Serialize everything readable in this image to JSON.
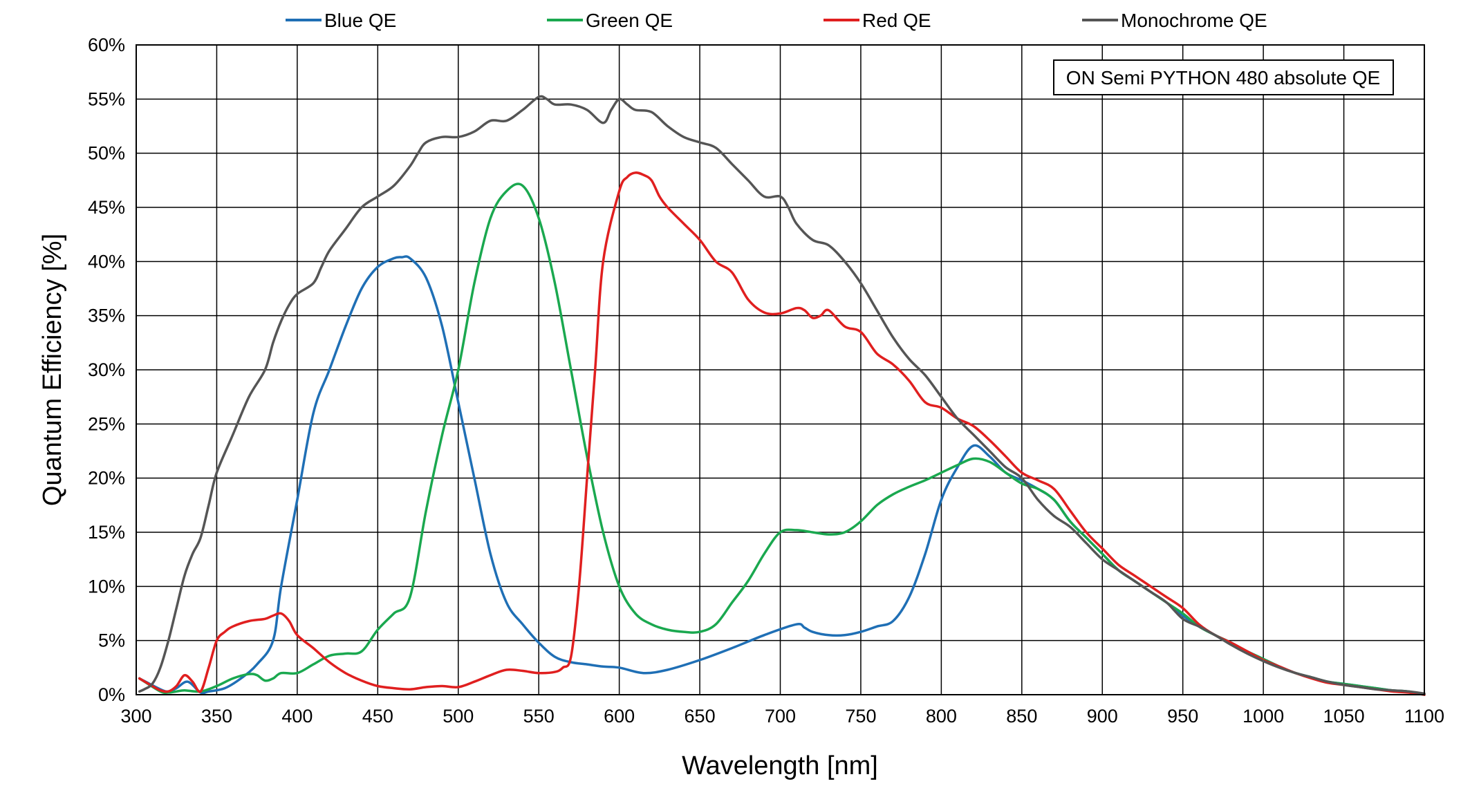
{
  "chart_data": {
    "type": "line",
    "title": "",
    "annotation": "ON Semi PYTHON 480 absolute QE",
    "xlabel": "Wavelength [nm]",
    "ylabel": "Quantum Efficiency [%]",
    "xlim": [
      300,
      1100
    ],
    "ylim": [
      0,
      60
    ],
    "xticks": [
      300,
      350,
      400,
      450,
      500,
      550,
      600,
      650,
      700,
      750,
      800,
      850,
      900,
      950,
      1000,
      1050,
      1100
    ],
    "yticks": [
      0,
      5,
      10,
      15,
      20,
      25,
      30,
      35,
      40,
      45,
      50,
      55,
      60
    ],
    "ytick_labels": [
      "0%",
      "5%",
      "10%",
      "15%",
      "20%",
      "25%",
      "30%",
      "35%",
      "40%",
      "45%",
      "50%",
      "55%",
      "60%"
    ],
    "grid": true,
    "legend_position": "top",
    "series": [
      {
        "name": "Blue QE",
        "color": "#1f6fb5",
        "x": [
          302,
          315,
          320,
          325,
          332,
          340,
          345,
          355,
          365,
          375,
          385,
          390,
          400,
          410,
          420,
          430,
          440,
          450,
          460,
          465,
          470,
          480,
          490,
          500,
          510,
          520,
          530,
          540,
          550,
          560,
          570,
          580,
          590,
          600,
          615,
          630,
          650,
          670,
          690,
          710,
          715,
          720,
          730,
          740,
          750,
          760,
          770,
          780,
          790,
          800,
          810,
          820,
          830,
          840,
          850,
          860,
          870,
          880,
          890,
          900,
          910,
          920,
          930,
          940,
          950,
          960,
          970,
          980,
          990,
          1000,
          1010,
          1020,
          1030,
          1040,
          1050,
          1060,
          1070,
          1080,
          1090,
          1100
        ],
        "y": [
          1.5,
          0.5,
          0.3,
          0.6,
          1.2,
          0.2,
          0.3,
          0.6,
          1.5,
          2.8,
          5.0,
          10.0,
          18.0,
          26.0,
          30.0,
          34.0,
          37.5,
          39.5,
          40.3,
          40.4,
          40.3,
          38.5,
          34.0,
          27.0,
          20.0,
          13.0,
          8.5,
          6.5,
          4.8,
          3.5,
          3.0,
          2.8,
          2.6,
          2.5,
          2.0,
          2.3,
          3.2,
          4.3,
          5.5,
          6.5,
          6.2,
          5.8,
          5.5,
          5.5,
          5.8,
          6.3,
          6.8,
          9.0,
          13.0,
          18.0,
          21.0,
          23.0,
          22.0,
          20.5,
          19.8,
          19.0,
          18.0,
          16.0,
          14.5,
          13.0,
          11.5,
          10.5,
          9.5,
          8.5,
          7.3,
          6.3,
          5.5,
          4.8,
          4.0,
          3.3,
          2.6,
          2.0,
          1.6,
          1.2,
          1.0,
          0.8,
          0.6,
          0.4,
          0.3,
          0.0
        ]
      },
      {
        "name": "Green QE",
        "color": "#1aa84f",
        "x": [
          302,
          315,
          320,
          325,
          330,
          340,
          350,
          360,
          370,
          375,
          380,
          385,
          390,
          400,
          410,
          420,
          430,
          440,
          450,
          460,
          470,
          480,
          490,
          500,
          510,
          520,
          530,
          540,
          550,
          560,
          570,
          580,
          590,
          600,
          610,
          620,
          630,
          640,
          650,
          660,
          670,
          680,
          690,
          700,
          710,
          720,
          730,
          740,
          750,
          760,
          770,
          780,
          790,
          800,
          810,
          820,
          830,
          840,
          850,
          860,
          870,
          880,
          890,
          900,
          910,
          920,
          930,
          940,
          950,
          960,
          970,
          980,
          990,
          1000,
          1010,
          1020,
          1030,
          1040,
          1050,
          1060,
          1070,
          1080,
          1090,
          1100
        ],
        "y": [
          1.5,
          0.3,
          0.2,
          0.3,
          0.4,
          0.3,
          0.8,
          1.5,
          1.9,
          1.8,
          1.3,
          1.5,
          2.0,
          2.0,
          2.8,
          3.6,
          3.8,
          4.0,
          6.0,
          7.5,
          9.0,
          17.0,
          24.0,
          30.0,
          38.0,
          44.0,
          46.5,
          47.0,
          44.0,
          38.0,
          30.0,
          22.0,
          15.0,
          10.0,
          7.5,
          6.5,
          6.0,
          5.8,
          5.8,
          6.5,
          8.5,
          10.5,
          13.0,
          15.0,
          15.2,
          15.0,
          14.8,
          15.0,
          16.0,
          17.5,
          18.5,
          19.2,
          19.8,
          20.5,
          21.2,
          21.8,
          21.5,
          20.5,
          19.5,
          19.0,
          18.0,
          16.0,
          14.5,
          13.0,
          11.5,
          10.5,
          9.5,
          8.5,
          7.5,
          6.3,
          5.5,
          4.8,
          4.0,
          3.3,
          2.6,
          2.0,
          1.6,
          1.2,
          1.0,
          0.8,
          0.6,
          0.4,
          0.3,
          0.0
        ]
      },
      {
        "name": "Red QE",
        "color": "#e01f1f",
        "x": [
          302,
          310,
          315,
          320,
          325,
          330,
          335,
          340,
          345,
          350,
          355,
          360,
          370,
          380,
          385,
          390,
          395,
          400,
          410,
          420,
          430,
          440,
          450,
          460,
          470,
          480,
          490,
          500,
          510,
          520,
          530,
          540,
          550,
          560,
          565,
          570,
          575,
          580,
          585,
          590,
          600,
          605,
          610,
          615,
          620,
          625,
          630,
          640,
          650,
          660,
          670,
          680,
          690,
          700,
          710,
          715,
          720,
          725,
          730,
          740,
          750,
          760,
          770,
          780,
          790,
          800,
          810,
          820,
          830,
          840,
          850,
          860,
          870,
          880,
          890,
          900,
          910,
          920,
          930,
          940,
          950,
          960,
          970,
          980,
          990,
          1000,
          1010,
          1020,
          1030,
          1040,
          1050,
          1060,
          1070,
          1080,
          1090,
          1100
        ],
        "y": [
          1.5,
          0.8,
          0.4,
          0.3,
          0.8,
          1.8,
          1.2,
          0.3,
          2.5,
          5.0,
          5.8,
          6.3,
          6.8,
          7.0,
          7.3,
          7.5,
          6.8,
          5.5,
          4.3,
          3.0,
          2.0,
          1.3,
          0.8,
          0.6,
          0.5,
          0.7,
          0.8,
          0.7,
          1.2,
          1.8,
          2.3,
          2.2,
          2.0,
          2.1,
          2.5,
          3.5,
          10.0,
          20.0,
          30.0,
          40.0,
          46.5,
          47.8,
          48.2,
          48.0,
          47.5,
          46.0,
          45.0,
          43.5,
          42.0,
          40.0,
          39.0,
          36.5,
          35.3,
          35.2,
          35.7,
          35.5,
          34.8,
          35.0,
          35.5,
          34.0,
          33.5,
          31.5,
          30.5,
          29.0,
          27.0,
          26.5,
          25.5,
          24.8,
          23.5,
          22.0,
          20.5,
          19.8,
          19.0,
          17.0,
          15.0,
          13.5,
          12.0,
          11.0,
          10.0,
          9.0,
          8.0,
          6.5,
          5.5,
          4.8,
          4.0,
          3.2,
          2.6,
          2.0,
          1.5,
          1.1,
          0.9,
          0.7,
          0.5,
          0.3,
          0.2,
          0.0
        ]
      },
      {
        "name": "Monochrome QE",
        "color": "#555555",
        "x": [
          302,
          305,
          310,
          315,
          320,
          325,
          330,
          335,
          340,
          345,
          350,
          360,
          370,
          380,
          385,
          390,
          395,
          400,
          410,
          415,
          420,
          430,
          440,
          450,
          460,
          470,
          475,
          480,
          490,
          500,
          510,
          520,
          530,
          540,
          550,
          555,
          560,
          570,
          580,
          590,
          595,
          600,
          605,
          610,
          620,
          630,
          640,
          650,
          660,
          670,
          680,
          690,
          700,
          705,
          710,
          720,
          730,
          740,
          750,
          760,
          770,
          780,
          790,
          800,
          810,
          820,
          830,
          840,
          850,
          860,
          870,
          880,
          890,
          900,
          910,
          920,
          930,
          940,
          950,
          960,
          970,
          980,
          990,
          1000,
          1010,
          1020,
          1030,
          1040,
          1050,
          1060,
          1070,
          1080,
          1090,
          1100
        ],
        "y": [
          0.3,
          0.5,
          1.0,
          2.5,
          5.0,
          8.0,
          11.0,
          13.0,
          14.5,
          17.5,
          20.5,
          24.0,
          27.5,
          30.0,
          32.5,
          34.5,
          36.0,
          37.0,
          38.0,
          39.5,
          41.0,
          43.0,
          45.0,
          46.0,
          47.0,
          48.8,
          50.0,
          51.0,
          51.5,
          51.5,
          52.0,
          53.0,
          53.0,
          54.0,
          55.2,
          55.0,
          54.5,
          54.5,
          54.0,
          52.8,
          54.0,
          55.0,
          54.5,
          54.0,
          53.8,
          52.5,
          51.5,
          51.0,
          50.5,
          49.0,
          47.5,
          46.0,
          46.0,
          45.0,
          43.5,
          42.0,
          41.5,
          40.0,
          38.0,
          35.5,
          33.0,
          31.0,
          29.5,
          27.5,
          25.5,
          24.0,
          22.5,
          21.0,
          20.0,
          18.0,
          16.5,
          15.5,
          14.0,
          12.5,
          11.5,
          10.5,
          9.5,
          8.5,
          7.0,
          6.3,
          5.5,
          4.6,
          3.8,
          3.1,
          2.5,
          2.0,
          1.6,
          1.2,
          0.9,
          0.7,
          0.5,
          0.4,
          0.3,
          0.1
        ]
      }
    ]
  }
}
